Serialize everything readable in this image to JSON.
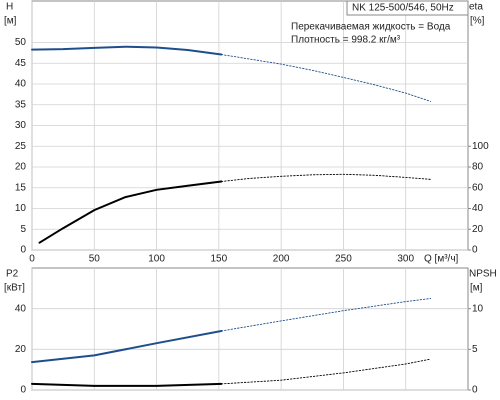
{
  "chart_data": [
    {
      "type": "line",
      "title": "NK 125-500/546, 50Hz",
      "annotations": [
        "Перекачиваемая жидкость = Вода",
        "Плотность = 998.2 кг/м³"
      ],
      "ylabel": "H",
      "yunit": "[м]",
      "y2label": "eta",
      "y2unit": "[%]",
      "xlabel": "Q [м³/ч]",
      "xlim": [
        0,
        350
      ],
      "xticks": [
        0,
        50,
        100,
        150,
        200,
        250,
        300
      ],
      "ylim": [
        0,
        60
      ],
      "yticks": [
        0,
        5,
        10,
        15,
        20,
        25,
        30,
        35,
        40,
        45,
        50
      ],
      "y2lim": [
        0,
        240
      ],
      "y2ticks": [
        0,
        20,
        40,
        60,
        80,
        100
      ],
      "grid": true,
      "show_xtick_labels": true,
      "series": [
        {
          "color": "#1f4e8c",
          "style": "solid",
          "x": [
            0,
            25,
            50,
            75,
            100,
            125,
            152
          ],
          "values": [
            48.3,
            48.4,
            48.7,
            49,
            48.8,
            48.2,
            47.1
          ]
        },
        {
          "color": "#1f4e8c",
          "style": "dotted",
          "x": [
            152,
            175,
            200,
            225,
            250,
            275,
            300,
            320
          ],
          "values": [
            47.1,
            46,
            44.8,
            43.3,
            41.6,
            39.8,
            37.8,
            35.8
          ]
        },
        {
          "color": "#000000",
          "style": "solid",
          "axis": "y2",
          "x": [
            6,
            25,
            50,
            75,
            100,
            125,
            152
          ],
          "values": [
            7,
            21,
            38.5,
            51,
            58,
            62,
            66
          ]
        },
        {
          "color": "#000000",
          "style": "dotted",
          "axis": "y2",
          "x": [
            152,
            175,
            200,
            225,
            250,
            275,
            300,
            320
          ],
          "values": [
            66,
            69,
            71,
            72.5,
            73,
            72,
            70,
            68
          ]
        }
      ]
    },
    {
      "type": "line",
      "ylabel": "P2",
      "yunit": "[кВт]",
      "y2label": "NPSH",
      "y2unit": "[м]",
      "xlim": [
        0,
        350
      ],
      "xticks": [
        0,
        50,
        100,
        150,
        200,
        250,
        300
      ],
      "ylim": [
        0,
        60
      ],
      "yticks": [
        0,
        20,
        40
      ],
      "y2lim": [
        0,
        15
      ],
      "y2ticks": [
        0,
        5,
        10
      ],
      "grid": true,
      "show_xtick_labels": false,
      "series": [
        {
          "color": "#1f4e8c",
          "style": "solid",
          "x": [
            0,
            50,
            100,
            152
          ],
          "values": [
            13.7,
            17,
            23,
            29
          ]
        },
        {
          "color": "#1f4e8c",
          "style": "dotted",
          "x": [
            152,
            200,
            250,
            300,
            320
          ],
          "values": [
            29,
            34,
            39,
            43.5,
            45
          ]
        },
        {
          "color": "#000000",
          "style": "solid",
          "axis": "y2",
          "x": [
            0,
            50,
            100,
            152
          ],
          "values": [
            0.75,
            0.5,
            0.5,
            0.75
          ]
        },
        {
          "color": "#000000",
          "style": "dotted",
          "axis": "y2",
          "x": [
            152,
            200,
            250,
            300,
            320
          ],
          "values": [
            0.75,
            1.2,
            2.1,
            3.2,
            3.8
          ]
        }
      ]
    }
  ]
}
